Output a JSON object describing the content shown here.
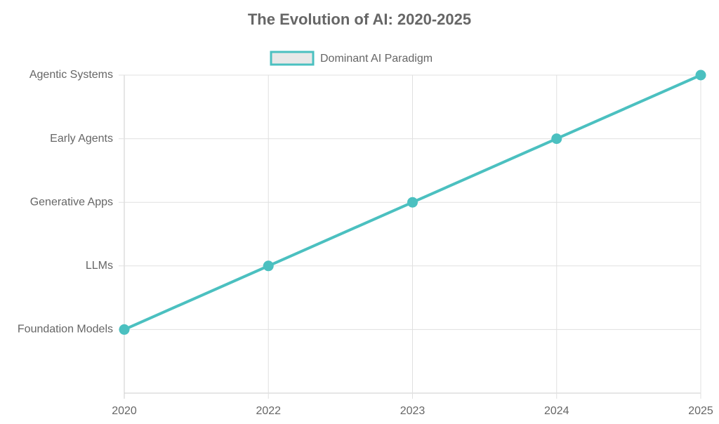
{
  "chart_data": {
    "type": "line",
    "title": "The Evolution of AI: 2020-2025",
    "categories": [
      "2020",
      "2022",
      "2023",
      "2024",
      "2025"
    ],
    "series": [
      {
        "name": "Dominant AI Paradigm",
        "color": "#4bc0c0",
        "values": [
          1,
          2,
          3,
          4,
          5
        ]
      }
    ],
    "ylim": [
      0,
      5
    ],
    "yticks": [
      {
        "value": 1,
        "label": "Foundation Models"
      },
      {
        "value": 2,
        "label": "LLMs"
      },
      {
        "value": 3,
        "label": "Generative Apps"
      },
      {
        "value": 4,
        "label": "Early Agents"
      },
      {
        "value": 5,
        "label": "Agentic Systems"
      }
    ],
    "grid": true,
    "legend": "top"
  }
}
